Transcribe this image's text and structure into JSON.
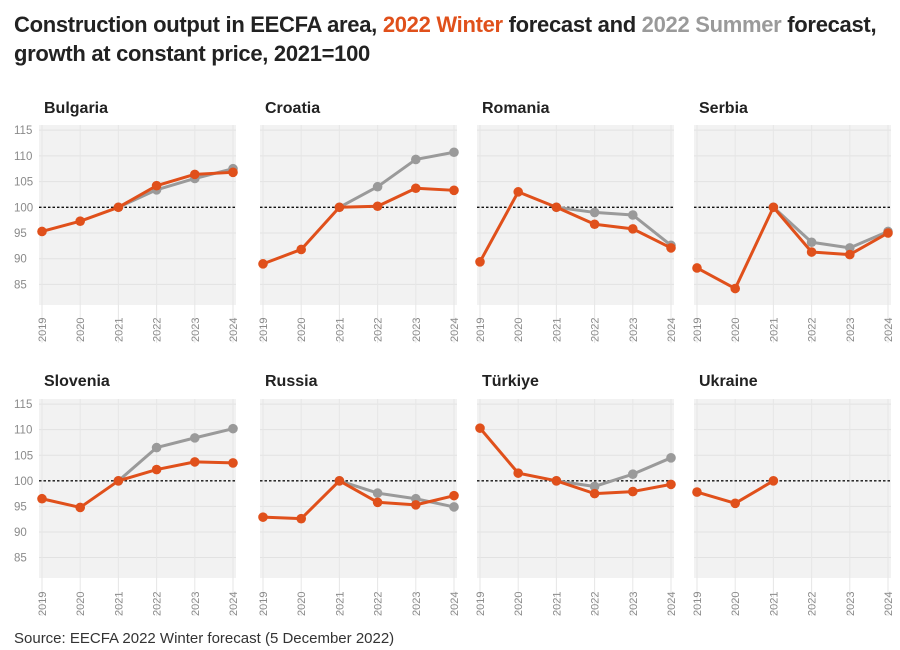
{
  "title": {
    "part1": "Construction output in EECFA area, ",
    "winter": "2022 Winter",
    "part2": " forecast and ",
    "summer": "2022 Summer",
    "part3": " forecast,",
    "line2": "growth at constant price, 2021=100"
  },
  "source": "Source: EECFA 2022 Winter forecast (5 December 2022)",
  "colors": {
    "winter": "#e0501b",
    "summer": "#9a9a9a",
    "panel_bg": "#f2f2f2"
  },
  "chart_data": {
    "type": "line",
    "x": [
      "2019",
      "2020",
      "2021",
      "2022",
      "2023",
      "2024"
    ],
    "y_ticks": [
      85,
      90,
      95,
      100,
      105,
      110,
      115
    ],
    "ylim": [
      81,
      116
    ],
    "reference_line": 100,
    "grid": true,
    "panels": [
      {
        "title": "Bulgaria",
        "show_y_ticks": true,
        "winter": [
          95.3,
          97.3,
          100,
          104.2,
          106.4,
          106.8
        ],
        "summer": [
          null,
          null,
          100,
          103.4,
          105.6,
          107.5
        ]
      },
      {
        "title": "Croatia",
        "show_y_ticks": false,
        "winter": [
          89,
          91.8,
          100,
          100.2,
          103.7,
          103.3
        ],
        "summer": [
          null,
          null,
          100,
          104,
          109.3,
          110.7
        ]
      },
      {
        "title": "Romania",
        "show_y_ticks": false,
        "winter": [
          89.4,
          103,
          100,
          96.7,
          95.8,
          92.1
        ],
        "summer": [
          null,
          null,
          100,
          99,
          98.5,
          92.6
        ]
      },
      {
        "title": "Serbia",
        "show_y_ticks": false,
        "winter": [
          88.2,
          84.2,
          100,
          91.3,
          90.8,
          95
        ],
        "summer": [
          null,
          null,
          100,
          93.2,
          92.1,
          95.3
        ]
      },
      {
        "title": "Slovenia",
        "show_y_ticks": true,
        "winter": [
          96.5,
          94.8,
          100,
          102.2,
          103.7,
          103.5
        ],
        "summer": [
          null,
          null,
          100,
          106.5,
          108.4,
          110.2
        ]
      },
      {
        "title": "Russia",
        "show_y_ticks": false,
        "winter": [
          92.9,
          92.6,
          100,
          95.8,
          95.3,
          97.1
        ],
        "summer": [
          null,
          null,
          100,
          97.6,
          96.5,
          94.9
        ]
      },
      {
        "title": "Türkiye",
        "show_y_ticks": false,
        "winter": [
          110.3,
          101.5,
          100,
          97.5,
          97.9,
          99.3
        ],
        "summer": [
          null,
          null,
          100,
          98.9,
          101.3,
          104.5
        ]
      },
      {
        "title": "Ukraine",
        "show_y_ticks": false,
        "winter": [
          97.8,
          95.6,
          100,
          null,
          null,
          null
        ],
        "summer": [
          null,
          null,
          null,
          null,
          null,
          null
        ]
      }
    ]
  }
}
